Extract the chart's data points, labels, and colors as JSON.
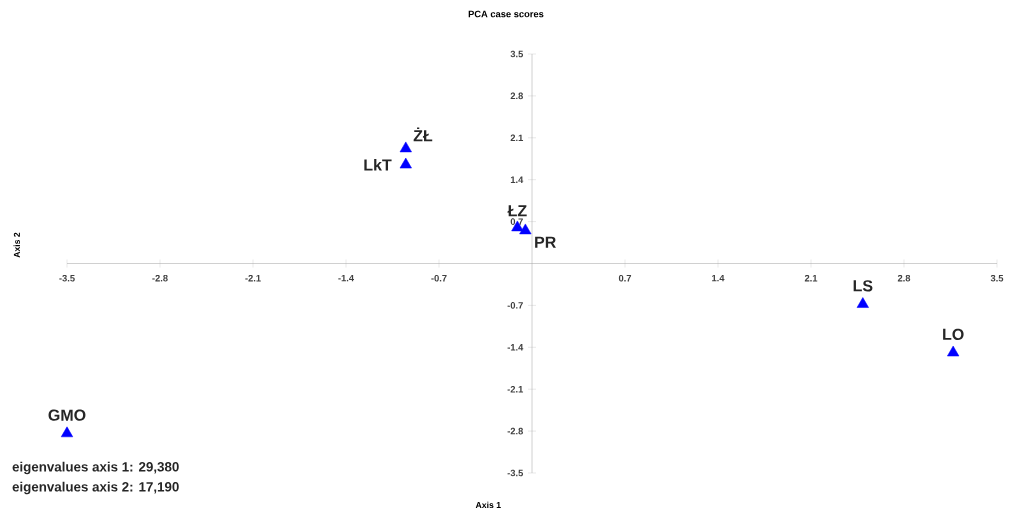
{
  "chart_data": {
    "type": "scatter",
    "title": "PCA case scores",
    "xlabel": "Axis 1",
    "ylabel": "Axis 2",
    "series": [
      {
        "color": "#0000ff",
        "x": [
          -0.95,
          -0.95,
          -0.11,
          -0.05,
          2.49,
          3.17,
          -3.5
        ],
        "values": [
          1.92,
          1.65,
          0.6,
          0.55,
          -0.68,
          -1.49,
          -2.84
        ]
      }
    ],
    "marker": "triangle",
    "xlim": [
      -3.5,
      3.5
    ],
    "ylim": [
      -3.5,
      3.5
    ],
    "xticks": [
      -3.5,
      -2.8,
      -2.1,
      -1.4,
      -0.7,
      0.7,
      1.4,
      2.1,
      2.8,
      3.5
    ],
    "yticks": [
      -3.5,
      -2.8,
      -2.1,
      -1.4,
      -0.7,
      0.7,
      1.4,
      2.1,
      2.8,
      3.5
    ],
    "annotations": [
      {
        "text": "ŻŁ",
        "x": -0.95,
        "y": 1.92
      },
      {
        "text": "LkT",
        "x": -0.95,
        "y": 1.65
      },
      {
        "text": "ŁZ",
        "x": -0.11,
        "y": 0.6
      },
      {
        "text": "PR",
        "x": -0.05,
        "y": 0.55
      },
      {
        "text": "LS",
        "x": 2.49,
        "y": -0.68
      },
      {
        "text": "LO",
        "x": 3.17,
        "y": -1.49
      },
      {
        "text": "GMO",
        "x": -3.5,
        "y": -2.84
      },
      "eigenvalues axis 1: 29,380",
      "eigenvalues axis 2: 17,190"
    ],
    "grid": false
  }
}
